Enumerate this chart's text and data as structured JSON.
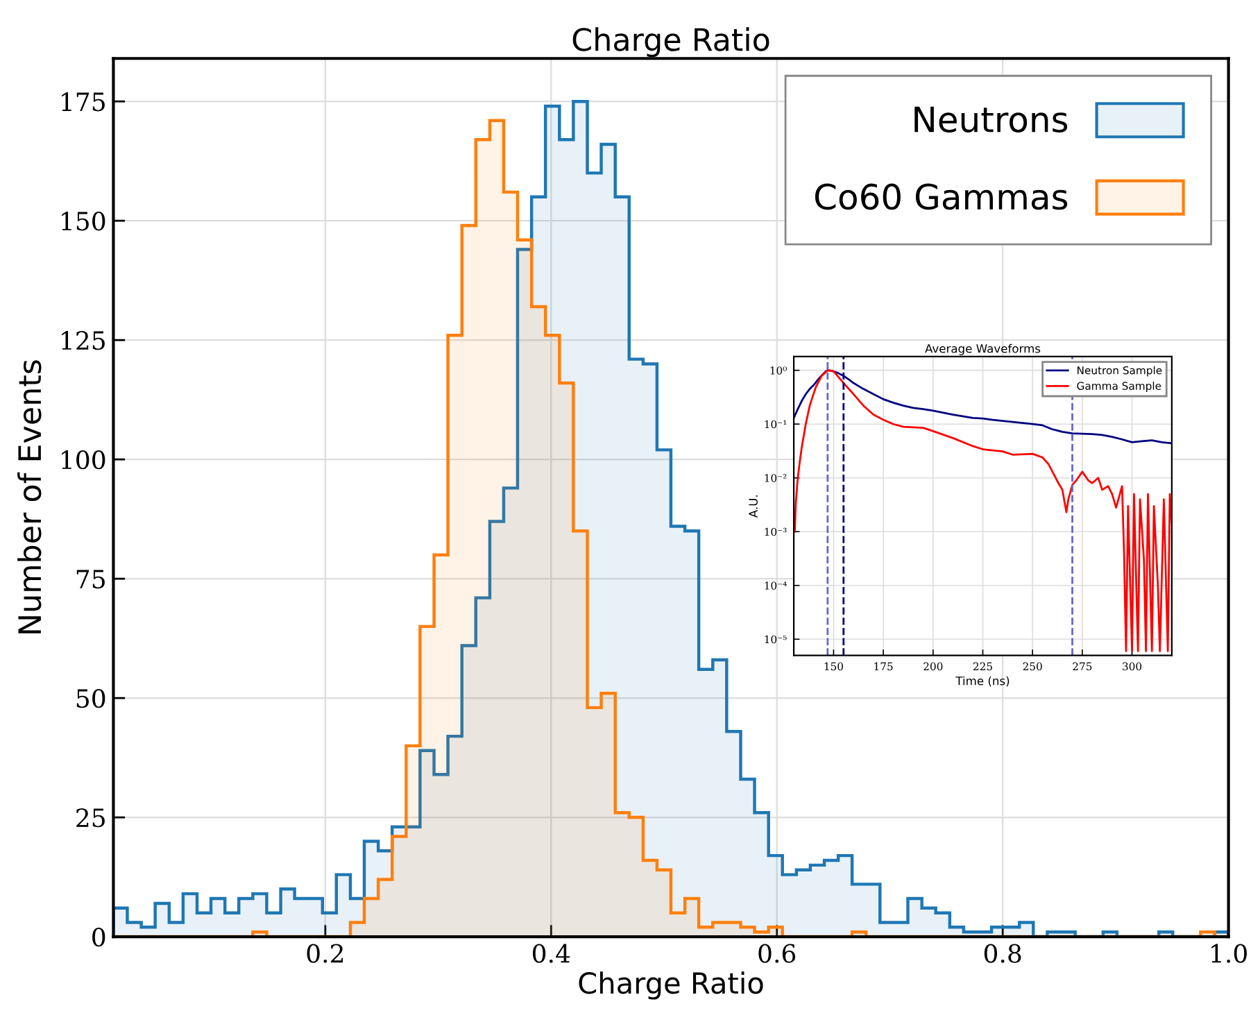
{
  "chart_data": [
    {
      "type": "histogram",
      "title": "Charge Ratio",
      "xlabel": "Charge Ratio",
      "ylabel": "Number of Events",
      "bins": [
        0.0123,
        0.0246,
        0.037,
        0.0493,
        0.0617,
        0.074,
        0.0864,
        0.0987,
        0.1111,
        0.1234,
        0.1358,
        0.1481,
        0.1605,
        0.1728,
        0.1851,
        0.1975,
        0.2098,
        0.2222,
        0.2345,
        0.2469,
        0.2592,
        0.2716,
        0.2839,
        0.2963,
        0.3086,
        0.321,
        0.3333,
        0.3457,
        0.358,
        0.3703,
        0.3827,
        0.395,
        0.4074,
        0.4197,
        0.4321,
        0.4444,
        0.4568,
        0.4691,
        0.4815,
        0.4938,
        0.5061,
        0.5185,
        0.5308,
        0.5432,
        0.5555,
        0.5679,
        0.5802,
        0.5926,
        0.6049,
        0.6173,
        0.6296,
        0.642,
        0.6543,
        0.6666,
        0.679,
        0.6913,
        0.7037,
        0.716,
        0.7284,
        0.7407,
        0.7531,
        0.7654,
        0.7777,
        0.7901,
        0.8024,
        0.8148,
        0.8271,
        0.8395,
        0.8518,
        0.8642,
        0.8765,
        0.8889,
        0.9012,
        0.9136,
        0.9259,
        0.9383,
        0.9506,
        0.963,
        0.9753,
        0.9877,
        1.0
      ],
      "series": [
        {
          "name": "Neutrons",
          "color": "#1f77b4",
          "values": [
            6,
            3,
            2,
            7,
            3,
            9,
            5,
            8,
            5,
            8,
            9,
            5,
            10,
            8,
            8,
            5,
            13,
            8,
            20,
            18,
            23,
            23,
            39,
            34,
            42,
            61,
            71,
            87,
            94,
            144,
            155,
            174,
            167,
            175,
            160,
            166,
            155,
            121,
            120,
            102,
            86,
            85,
            56,
            58,
            43,
            33,
            26,
            17,
            13,
            14,
            15,
            16,
            17,
            11,
            11,
            3,
            3,
            8,
            6,
            5,
            2,
            1,
            1,
            2,
            2,
            3,
            0,
            1,
            1,
            0,
            0,
            1,
            0,
            0,
            0,
            1,
            0,
            0,
            0,
            1
          ]
        },
        {
          "name": "Co60 Gammas",
          "color": "#ff7f0e",
          "values": [
            0,
            0,
            0,
            0,
            0,
            0,
            0,
            0,
            0,
            0,
            1,
            0,
            0,
            0,
            0,
            0,
            0,
            3,
            8,
            12,
            21,
            40,
            65,
            80,
            126,
            149,
            167,
            171,
            156,
            146,
            132,
            126,
            116,
            85,
            48,
            51,
            26,
            25,
            16,
            14,
            5,
            8,
            2,
            3,
            3,
            2,
            1,
            2,
            0,
            0,
            0,
            0,
            0,
            1,
            0,
            0,
            0,
            0,
            0,
            0,
            0,
            0,
            0,
            0,
            0,
            0,
            0,
            0,
            0,
            0,
            0,
            0,
            0,
            0,
            0,
            0,
            0,
            0,
            1,
            0
          ]
        }
      ],
      "xlim": [
        0.0123,
        1.0
      ],
      "ylim": [
        0,
        184
      ],
      "xticks": [
        0.2,
        0.4,
        0.6,
        0.8,
        {
          "value": 1,
          "label": "1.0"
        }
      ],
      "yticks": [
        0,
        25,
        50,
        75,
        100,
        125,
        150,
        175
      ],
      "grid": true,
      "legend": "top right"
    },
    {
      "type": "line",
      "title": "Average Waveforms",
      "xlabel": "Time (ns)",
      "ylabel": "A.U.",
      "log": "y",
      "series": [
        {
          "name": "Neutron Sample",
          "color": "#000080",
          "x": [
            130,
            132,
            134,
            136,
            138,
            140,
            142,
            144,
            146,
            147,
            149,
            152,
            155,
            158,
            160,
            165,
            170,
            175,
            180,
            185,
            190,
            195,
            200,
            210,
            220,
            225,
            230,
            240,
            250,
            255,
            260,
            265,
            270,
            275,
            280,
            285,
            290,
            295,
            300,
            305,
            310,
            315,
            320
          ],
          "values": [
            0.13,
            0.19,
            0.27,
            0.36,
            0.45,
            0.53,
            0.66,
            0.8,
            0.95,
            1.0,
            0.98,
            0.9,
            0.79,
            0.66,
            0.58,
            0.45,
            0.36,
            0.29,
            0.25,
            0.22,
            0.2,
            0.19,
            0.178,
            0.15,
            0.13,
            0.127,
            0.12,
            0.11,
            0.1,
            0.095,
            0.08,
            0.072,
            0.067,
            0.066,
            0.065,
            0.063,
            0.058,
            0.052,
            0.046,
            0.048,
            0.05,
            0.046,
            0.044
          ]
        },
        {
          "name": "Gamma Sample",
          "color": "#ff0000",
          "x": [
            130.5,
            131,
            132,
            133,
            134,
            136,
            138,
            141,
            144,
            147,
            150,
            155,
            160,
            165,
            170,
            175,
            180,
            185,
            190,
            195,
            200,
            210,
            220,
            225,
            235,
            240,
            250,
            255,
            258,
            260,
            263,
            265,
            267,
            268,
            270,
            272,
            275,
            278,
            280,
            283,
            285,
            288,
            290,
            292,
            295,
            296,
            297,
            298,
            300,
            301,
            303,
            304,
            306,
            307,
            308,
            310,
            311,
            313,
            314,
            316,
            318,
            319,
            320
          ],
          "values": [
            0.001,
            0.0034,
            0.01,
            0.02,
            0.037,
            0.1,
            0.22,
            0.48,
            0.79,
            1.0,
            0.96,
            0.58,
            0.36,
            0.22,
            0.15,
            0.12,
            0.1,
            0.089,
            0.087,
            0.085,
            0.074,
            0.055,
            0.039,
            0.034,
            0.031,
            0.027,
            0.028,
            0.024,
            0.018,
            0.013,
            0.008,
            0.006,
            0.0023,
            0.004,
            0.0074,
            0.009,
            0.013,
            0.009,
            0.008,
            0.01,
            0.006,
            0.007,
            0.005,
            0.0028,
            0.007,
            0.0004,
            6e-06,
            0.003,
            6e-06,
            0.005,
            6e-06,
            0.004,
            0.0003,
            6e-06,
            0.005,
            6e-06,
            0.003,
            0.0001,
            6e-06,
            0.004,
            6e-06,
            0.005,
            0.0015
          ]
        }
      ],
      "ref_lines": [
        {
          "axis": "x",
          "value": 147,
          "color": "#6666cc",
          "line_style": "dashed"
        },
        {
          "axis": "x",
          "value": 155,
          "color": "#000080",
          "line_style": "dashed"
        },
        {
          "axis": "x",
          "value": 270,
          "color": "#6666cc",
          "line_style": "dashed"
        }
      ],
      "xlim": [
        130,
        320
      ],
      "ylim": [
        5e-06,
        1.8
      ],
      "xticks": [
        150,
        175,
        200,
        225,
        250,
        275,
        300
      ],
      "yticks": [
        {
          "value": 1,
          "label": "10⁰"
        },
        {
          "value": 0.1,
          "label": "10⁻¹"
        },
        {
          "value": 0.01,
          "label": "10⁻²"
        },
        {
          "value": 0.001,
          "label": "10⁻³"
        },
        {
          "value": 0.0001,
          "label": "10⁻⁴"
        },
        {
          "value": 1e-05,
          "label": "10⁻⁵"
        }
      ],
      "grid": true,
      "legend": "top right"
    }
  ]
}
